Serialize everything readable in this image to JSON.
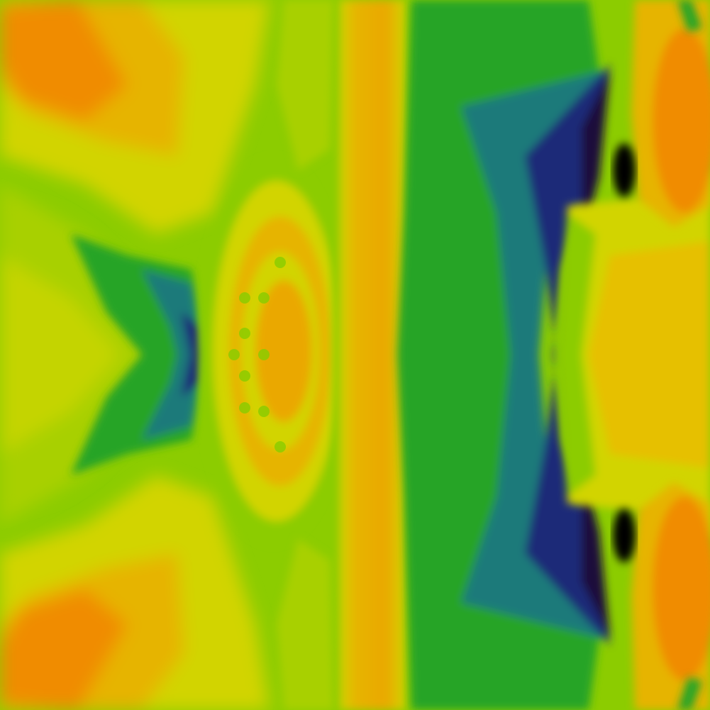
{
  "image": {
    "subject": "colormapped-flow-field",
    "palette": {
      "deep": "#1a0f3a",
      "navy": "#1f2a78",
      "teal": "#1f7a7a",
      "green": "#28a428",
      "lime": "#8ccc00",
      "yellow": "#d2d400",
      "gold": "#e6b400",
      "orange": "#f08c00",
      "black": "#000000"
    }
  }
}
